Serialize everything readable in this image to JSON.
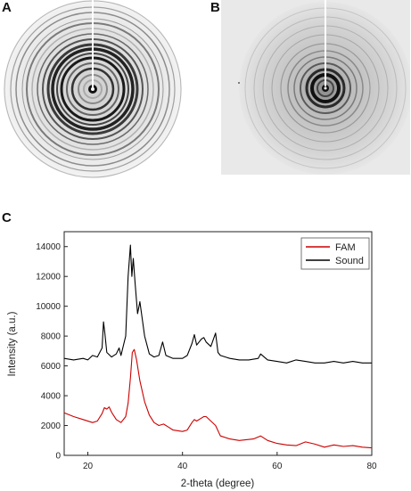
{
  "panels": {
    "a": "A",
    "b": "B",
    "c": "C"
  },
  "chart_data": {
    "type": "line",
    "xlabel": "2-theta (degree)",
    "ylabel": "Intensity (a.u.)",
    "xlim": [
      15,
      80
    ],
    "ylim": [
      0,
      15000
    ],
    "xticks": [
      20,
      40,
      60,
      80
    ],
    "yticks": [
      0,
      2000,
      4000,
      6000,
      8000,
      10000,
      12000,
      14000
    ],
    "legend_position": "top-right",
    "series": [
      {
        "name": "FAM",
        "color": "#cc0000",
        "x": [
          15,
          17,
          19,
          21,
          22,
          23,
          23.5,
          24,
          24.5,
          25,
          26,
          27,
          28,
          28.5,
          29,
          29.4,
          29.8,
          30.3,
          31,
          32,
          33,
          34,
          35,
          36,
          37,
          38,
          40,
          41,
          42,
          42.5,
          43,
          44,
          44.5,
          45,
          46,
          47,
          48,
          50,
          52,
          55,
          56.5,
          58,
          60,
          62,
          64,
          66,
          68,
          70,
          72,
          74,
          76,
          78,
          80
        ],
        "y": [
          2850,
          2600,
          2400,
          2200,
          2300,
          2800,
          3200,
          3100,
          3250,
          2900,
          2400,
          2200,
          2600,
          3500,
          5200,
          6900,
          7100,
          6400,
          5000,
          3600,
          2700,
          2200,
          2000,
          2100,
          1900,
          1700,
          1600,
          1700,
          2200,
          2400,
          2300,
          2500,
          2600,
          2600,
          2300,
          2000,
          1300,
          1100,
          1000,
          1100,
          1300,
          1000,
          800,
          700,
          650,
          900,
          750,
          550,
          700,
          600,
          650,
          550,
          500
        ]
      },
      {
        "name": "Sound",
        "color": "#000000",
        "x": [
          15,
          17,
          19,
          20,
          21,
          22,
          23,
          23.3,
          23.6,
          24,
          25,
          26,
          26.6,
          27,
          28,
          28.5,
          29,
          29.3,
          29.6,
          30,
          30.5,
          31,
          32,
          33,
          34,
          35,
          35.8,
          36.5,
          38,
          40,
          41,
          42,
          42.5,
          43,
          44,
          44.5,
          45,
          46,
          47,
          47.5,
          48,
          50,
          52,
          54,
          56,
          56.5,
          58,
          60,
          62,
          64,
          66,
          68,
          70,
          72,
          74,
          76,
          78,
          80
        ],
        "y": [
          6500,
          6400,
          6500,
          6400,
          6700,
          6600,
          7200,
          8950,
          8200,
          6900,
          6600,
          6800,
          7200,
          6700,
          8000,
          12000,
          14100,
          12000,
          13200,
          11500,
          9500,
          10300,
          8000,
          6800,
          6600,
          6700,
          7600,
          6700,
          6500,
          6500,
          6700,
          7500,
          8100,
          7400,
          7800,
          7900,
          7600,
          7300,
          8200,
          6900,
          6700,
          6500,
          6400,
          6400,
          6500,
          6800,
          6400,
          6300,
          6200,
          6400,
          6300,
          6200,
          6200,
          6300,
          6200,
          6300,
          6200,
          6200
        ]
      }
    ]
  }
}
